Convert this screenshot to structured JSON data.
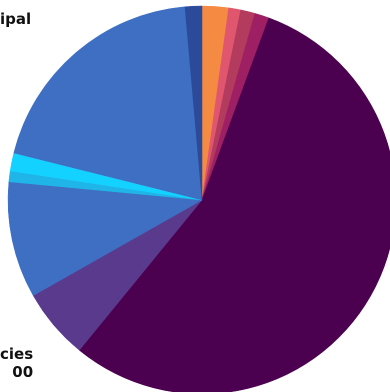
{
  "chart_data": {
    "type": "pie",
    "title": "",
    "slices": [
      {
        "value": 2.2,
        "color": "#f58a42"
      },
      {
        "value": 1.0,
        "color": "#e0566e"
      },
      {
        "value": 1.2,
        "color": "#b33b5e"
      },
      {
        "value": 1.2,
        "color": "#9e1f63"
      },
      {
        "value": 55.3,
        "color": "#4b0050"
      },
      {
        "value": 5.9,
        "color": "#5a3a8c"
      },
      {
        "value": 9.7,
        "color": "#3e6fc2"
      },
      {
        "value": 0.9,
        "color": "#1fb5e8"
      },
      {
        "value": 1.5,
        "color": "#14d2ff"
      },
      {
        "value": 19.7,
        "color": "#3e6fc2"
      },
      {
        "value": 1.4,
        "color": "#2b4a9a"
      }
    ],
    "visible_labels": {
      "top_left": "ipal",
      "bottom_left_line1": "cies",
      "bottom_left_line2": "00"
    }
  }
}
